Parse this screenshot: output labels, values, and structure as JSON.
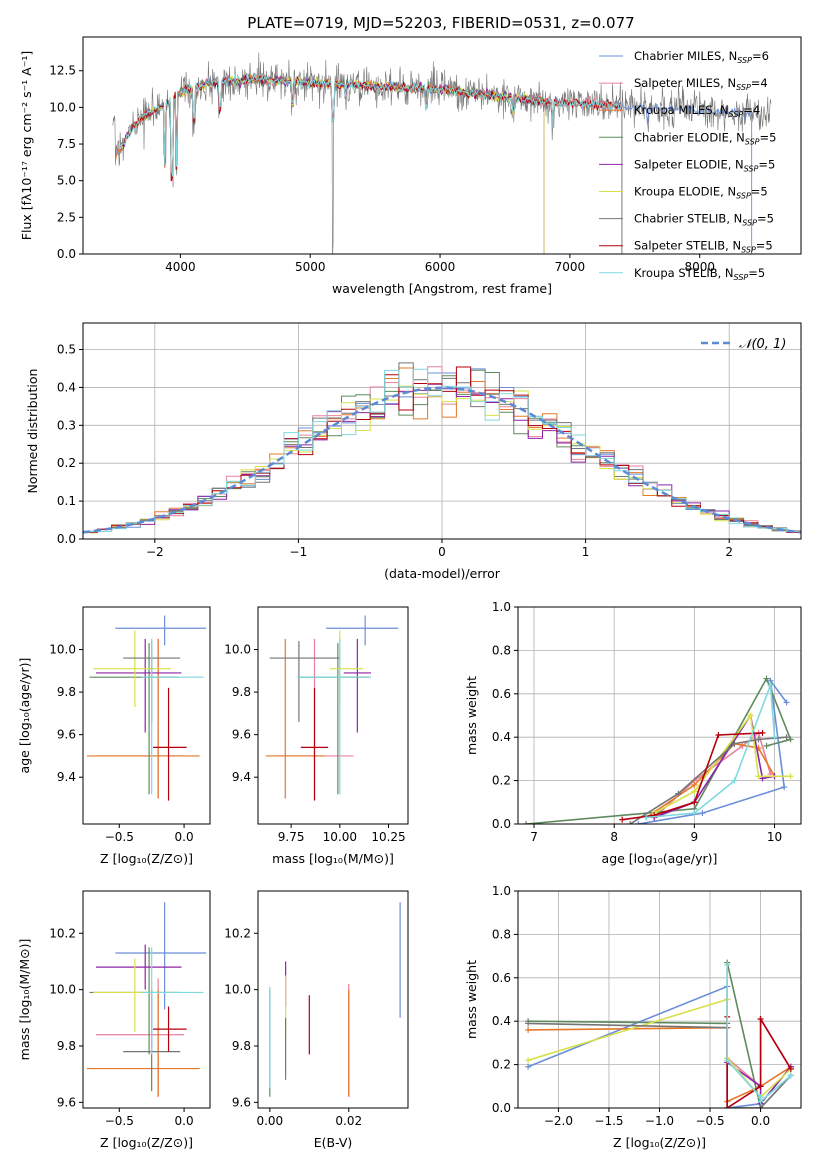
{
  "page_title": "PLATE=0719, MJD=52203, FIBERID=0531, z=0.077",
  "series_colors": [
    "#6a8fd8",
    "#e8829c",
    "#e6782a",
    "#5e8a5e",
    "#8e24aa",
    "#d8e04a",
    "#757575",
    "#b3000c",
    "#7fd9df"
  ],
  "legend_entries": [
    {
      "model": "Chabrier MILES, N",
      "sub": "SSP",
      "eq": "=6"
    },
    {
      "model": "Salpeter MILES, N",
      "sub": "SSP",
      "eq": "=4"
    },
    {
      "model": "Kroupa MILES, N",
      "sub": "SSP",
      "eq": "=4"
    },
    {
      "model": "Chabrier ELODIE, N",
      "sub": "SSP",
      "eq": "=5"
    },
    {
      "model": "Salpeter ELODIE, N",
      "sub": "SSP",
      "eq": "=5"
    },
    {
      "model": "Kroupa ELODIE, N",
      "sub": "SSP",
      "eq": "=5"
    },
    {
      "model": "Chabrier STELIB, N",
      "sub": "SSP",
      "eq": "=5"
    },
    {
      "model": "Salpeter STELIB, N",
      "sub": "SSP",
      "eq": "=5"
    },
    {
      "model": "Kroupa STELIB, N",
      "sub": "SSP",
      "eq": "=5"
    }
  ],
  "chart_data": [
    {
      "id": "spectrum",
      "type": "line",
      "xlabel": "wavelength [Angstrom, rest frame]",
      "ylabel": "Flux [fλ10⁻¹⁷ erg cm⁻² s⁻¹ A⁻¹]",
      "xlim": [
        3250,
        8780
      ],
      "ylim": [
        0,
        14.8
      ],
      "xticks": [
        4000,
        5000,
        6000,
        7000,
        8000
      ],
      "yticks": [
        0.0,
        2.5,
        5.0,
        7.5,
        10.0,
        12.5
      ],
      "grid": false,
      "legend": "top-right",
      "continuum": [
        [
          3500,
          6.5
        ],
        [
          3600,
          8.2
        ],
        [
          3700,
          9.3
        ],
        [
          3800,
          9.8
        ],
        [
          3900,
          10.2
        ],
        [
          4000,
          11.0
        ],
        [
          4200,
          11.6
        ],
        [
          4400,
          11.8
        ],
        [
          4600,
          11.9
        ],
        [
          4800,
          11.8
        ],
        [
          5000,
          11.7
        ],
        [
          5200,
          11.6
        ],
        [
          5400,
          11.5
        ],
        [
          5600,
          11.4
        ],
        [
          5800,
          11.3
        ],
        [
          6000,
          11.2
        ],
        [
          6200,
          11.0
        ],
        [
          6400,
          10.8
        ],
        [
          6600,
          10.6
        ],
        [
          6800,
          10.4
        ],
        [
          7000,
          10.3
        ],
        [
          7200,
          10.2
        ],
        [
          7400,
          10.1
        ],
        [
          7600,
          10.0
        ],
        [
          7800,
          9.9
        ],
        [
          8000,
          9.8
        ],
        [
          8200,
          9.7
        ],
        [
          8400,
          9.6
        ]
      ],
      "model_ranges": [
        [
          3500,
          8400
        ],
        [
          3500,
          7400
        ],
        [
          3500,
          7400
        ],
        [
          3540,
          6800
        ],
        [
          3540,
          6800
        ],
        [
          3540,
          6800
        ],
        [
          3540,
          7400
        ],
        [
          3540,
          7400
        ],
        [
          3540,
          7400
        ]
      ]
    },
    {
      "id": "residuals",
      "type": "bar",
      "xlabel": "(data-model)/error",
      "ylabel": "Normed distribution",
      "xlim": [
        -2.5,
        2.5
      ],
      "ylim": [
        0,
        0.57
      ],
      "xticks": [
        -2,
        -1,
        0,
        1,
        2
      ],
      "yticks": [
        0.0,
        0.1,
        0.2,
        0.3,
        0.4,
        0.5
      ],
      "grid": true,
      "legend": "top-right",
      "legend_label": "𝒩(0, 1)",
      "bin_width": 0.1,
      "bin_start": -2.5
    },
    {
      "id": "age_vs_Z",
      "type": "scatter",
      "xlabel": "Z [log₁₀(Z/Z⊙)]",
      "ylabel": "age  [log₁₀(age/yr)]",
      "xlim": [
        -0.78,
        0.2
      ],
      "ylim": [
        9.18,
        10.2
      ],
      "xticks": [
        -0.5,
        0.0
      ],
      "xticklabels": [
        "−0.5",
        "0.0"
      ],
      "yticks": [
        9.4,
        9.6,
        9.8,
        10.0
      ],
      "points": [
        {
          "x": -0.15,
          "xerr": [
            0.38,
            0.32
          ],
          "y": 10.1,
          "yerr": [
            0.08,
            0.06
          ]
        },
        {
          "x": -0.2,
          "xerr": [
            0.48,
            0.2
          ],
          "y": 9.5,
          "yerr": [
            0.2,
            0.55
          ]
        },
        {
          "x": -0.2,
          "xerr": [
            0.55,
            0.32
          ],
          "y": 9.5,
          "yerr": [
            0.2,
            0.55
          ]
        },
        {
          "x": -0.27,
          "xerr": [
            0.46,
            0.23
          ],
          "y": 9.87,
          "yerr": [
            0.55,
            0.16
          ]
        },
        {
          "x": -0.3,
          "xerr": [
            0.38,
            0.28
          ],
          "y": 9.89,
          "yerr": [
            0.28,
            0.16
          ]
        },
        {
          "x": -0.38,
          "xerr": [
            0.32,
            0.28
          ],
          "y": 9.91,
          "yerr": [
            0.18,
            0.18
          ]
        },
        {
          "x": -0.25,
          "xerr": [
            0.22,
            0.22
          ],
          "y": 9.96,
          "yerr": [
            0.3,
            0.08
          ]
        },
        {
          "x": -0.12,
          "xerr": [
            0.12,
            0.14
          ],
          "y": 9.54,
          "yerr": [
            0.25,
            0.28
          ]
        },
        {
          "x": -0.25,
          "xerr": [
            0.08,
            0.4
          ],
          "y": 9.87,
          "yerr": [
            0.55,
            0.18
          ]
        }
      ]
    },
    {
      "id": "age_vs_mass",
      "type": "scatter",
      "xlabel": "mass [log₁₀(M/M⊙)]",
      "ylabel": "",
      "xlim": [
        9.58,
        10.35
      ],
      "ylim": [
        9.18,
        10.2
      ],
      "xticks": [
        9.75,
        10.0,
        10.25
      ],
      "xticklabels": [
        "9.75",
        "10.00",
        "10.25"
      ],
      "yticks": [
        9.4,
        9.6,
        9.8,
        10.0
      ],
      "points": [
        {
          "x": 10.13,
          "xerr": [
            0.2,
            0.17
          ],
          "y": 10.1,
          "yerr": [
            0.08,
            0.06
          ]
        },
        {
          "x": 9.87,
          "xerr": [
            0.2,
            0.2
          ],
          "y": 9.5,
          "yerr": [
            0.2,
            0.55
          ]
        },
        {
          "x": 9.72,
          "xerr": [
            0.1,
            0.2
          ],
          "y": 9.5,
          "yerr": [
            0.2,
            0.55
          ]
        },
        {
          "x": 9.99,
          "xerr": [
            0.2,
            0.16
          ],
          "y": 9.87,
          "yerr": [
            0.55,
            0.16
          ]
        },
        {
          "x": 10.09,
          "xerr": [
            0.07,
            0.07
          ],
          "y": 9.89,
          "yerr": [
            0.28,
            0.16
          ]
        },
        {
          "x": 10.0,
          "xerr": [
            0.05,
            0.12
          ],
          "y": 9.91,
          "yerr": [
            0.18,
            0.18
          ]
        },
        {
          "x": 9.79,
          "xerr": [
            0.15,
            0.21
          ],
          "y": 9.96,
          "yerr": [
            0.3,
            0.08
          ]
        },
        {
          "x": 9.87,
          "xerr": [
            0.07,
            0.07
          ],
          "y": 9.54,
          "yerr": [
            0.25,
            0.28
          ]
        },
        {
          "x": 10.0,
          "xerr": [
            0.22,
            0.16
          ],
          "y": 9.87,
          "yerr": [
            0.55,
            0.18
          ]
        }
      ]
    },
    {
      "id": "weight_vs_age",
      "type": "line",
      "xlabel": "age  [log₁₀(age/yr)]",
      "ylabel": "mass weight",
      "xlim": [
        6.8,
        10.33
      ],
      "ylim": [
        0,
        1.0
      ],
      "xticks": [
        7,
        8,
        9,
        10
      ],
      "yticks": [
        0.0,
        0.2,
        0.4,
        0.6,
        0.8,
        1.0
      ],
      "grid": true,
      "series": [
        {
          "x": [
            8.3,
            9.1,
            10.12,
            9.95,
            10.15
          ],
          "y": [
            0.0,
            0.05,
            0.17,
            0.66,
            0.56
          ]
        },
        {
          "x": [
            8.5,
            9.0,
            9.6,
            9.8,
            9.95
          ],
          "y": [
            0.03,
            0.2,
            0.36,
            0.42,
            0.23
          ]
        },
        {
          "x": [
            8.4,
            9.0,
            9.5,
            9.8,
            10.0
          ],
          "y": [
            0.03,
            0.18,
            0.37,
            0.35,
            0.22
          ]
        },
        {
          "x": [
            6.9,
            9.0,
            9.9,
            10.2,
            9.9
          ],
          "y": [
            0.0,
            0.07,
            0.67,
            0.39,
            0.36
          ]
        },
        {
          "x": [
            8.5,
            9.0,
            9.7,
            9.85,
            10.0
          ],
          "y": [
            0.03,
            0.1,
            0.5,
            0.21,
            0.22
          ]
        },
        {
          "x": [
            8.5,
            9.0,
            9.7,
            9.8,
            10.2
          ],
          "y": [
            0.05,
            0.15,
            0.5,
            0.22,
            0.22
          ]
        },
        {
          "x": [
            8.2,
            8.8,
            9.5,
            9.8,
            10.15
          ],
          "y": [
            0.0,
            0.14,
            0.37,
            0.39,
            0.4
          ]
        },
        {
          "x": [
            8.1,
            8.5,
            9.0,
            9.3,
            9.85
          ],
          "y": [
            0.02,
            0.04,
            0.1,
            0.41,
            0.42
          ]
        },
        {
          "x": [
            8.4,
            9.0,
            9.5,
            9.95,
            10.0
          ],
          "y": [
            0.03,
            0.05,
            0.2,
            0.64,
            0.4
          ]
        }
      ]
    },
    {
      "id": "mass_vs_Z",
      "type": "scatter",
      "xlabel": "Z [log₁₀(Z/Z⊙)]",
      "ylabel": "mass [log₁₀(M/M⊙)]",
      "xlim": [
        -0.78,
        0.2
      ],
      "ylim": [
        9.58,
        10.35
      ],
      "xticks": [
        -0.5,
        0.0
      ],
      "xticklabels": [
        "−0.5",
        "0.0"
      ],
      "yticks": [
        9.6,
        9.8,
        10.0,
        10.2
      ],
      "points": [
        {
          "x": -0.15,
          "xerr": [
            0.38,
            0.32
          ],
          "y": 10.13,
          "yerr": [
            0.2,
            0.18
          ]
        },
        {
          "x": -0.2,
          "xerr": [
            0.48,
            0.2
          ],
          "y": 9.84,
          "yerr": [
            0.22,
            0.2
          ]
        },
        {
          "x": -0.2,
          "xerr": [
            0.55,
            0.32
          ],
          "y": 9.72,
          "yerr": [
            0.1,
            0.28
          ]
        },
        {
          "x": -0.27,
          "xerr": [
            0.46,
            0.23
          ],
          "y": 9.99,
          "yerr": [
            0.22,
            0.16
          ]
        },
        {
          "x": -0.3,
          "xerr": [
            0.38,
            0.28
          ],
          "y": 10.08,
          "yerr": [
            0.08,
            0.08
          ]
        },
        {
          "x": -0.38,
          "xerr": [
            0.32,
            0.28
          ],
          "y": 9.99,
          "yerr": [
            0.14,
            0.12
          ]
        },
        {
          "x": -0.25,
          "xerr": [
            0.22,
            0.22
          ],
          "y": 9.78,
          "yerr": [
            0.14,
            0.22
          ]
        },
        {
          "x": -0.12,
          "xerr": [
            0.12,
            0.14
          ],
          "y": 9.86,
          "yerr": [
            0.08,
            0.08
          ]
        },
        {
          "x": -0.25,
          "xerr": [
            0.08,
            0.4
          ],
          "y": 9.99,
          "yerr": [
            0.22,
            0.16
          ]
        }
      ]
    },
    {
      "id": "mass_vs_ebv",
      "type": "scatter",
      "xlabel": "E(B-V)",
      "ylabel": "",
      "xlim": [
        -0.003,
        0.035
      ],
      "ylim": [
        9.58,
        10.35
      ],
      "xticks": [
        0.0,
        0.02
      ],
      "xticklabels": [
        "0.00",
        "0.02"
      ],
      "yticks": [
        9.6,
        9.8,
        10.0,
        10.2
      ],
      "points": [
        {
          "x": 0.033,
          "xerr": [
            0,
            0
          ],
          "y": 10.1,
          "yerr": [
            0.2,
            0.21
          ]
        },
        {
          "x": 0.02,
          "xerr": [
            0,
            0
          ],
          "y": 9.82,
          "yerr": [
            0.2,
            0.2
          ]
        },
        {
          "x": 0.02,
          "xerr": [
            0,
            0
          ],
          "y": 9.72,
          "yerr": [
            0.1,
            0.28
          ]
        },
        {
          "x": 0.0,
          "xerr": [
            0,
            0
          ],
          "y": 9.82,
          "yerr": [
            0.2,
            0.18
          ]
        },
        {
          "x": 0.004,
          "xerr": [
            0,
            0
          ],
          "y": 10.0,
          "yerr": [
            0.06,
            0.1
          ]
        },
        {
          "x": 0.004,
          "xerr": [
            0,
            0
          ],
          "y": 9.95,
          "yerr": [
            0.12,
            0.1
          ]
        },
        {
          "x": 0.004,
          "xerr": [
            0,
            0
          ],
          "y": 9.78,
          "yerr": [
            0.1,
            0.12
          ]
        },
        {
          "x": 0.01,
          "xerr": [
            0,
            0
          ],
          "y": 9.88,
          "yerr": [
            0.11,
            0.1
          ]
        },
        {
          "x": 0.0,
          "xerr": [
            0,
            0
          ],
          "y": 9.85,
          "yerr": [
            0.2,
            0.16
          ]
        }
      ]
    },
    {
      "id": "weight_vs_Z",
      "type": "line",
      "xlabel": "Z [log₁₀(Z/Z⊙)]",
      "ylabel": "mass weight",
      "xlim": [
        -2.4,
        0.4
      ],
      "ylim": [
        0,
        1.0
      ],
      "xticks": [
        -2.0,
        -1.5,
        -1.0,
        -0.5,
        0.0
      ],
      "xticklabels": [
        "−2.0",
        "−1.5",
        "−1.0",
        "−0.5",
        "0.0"
      ],
      "yticks": [
        0.0,
        0.2,
        0.4,
        0.6,
        0.8,
        1.0
      ],
      "grid": true,
      "series": [
        {
          "x": [
            -2.3,
            -0.33,
            -0.33,
            0.0,
            0.3
          ],
          "y": [
            0.19,
            0.56,
            0.0,
            0.02,
            0.19
          ]
        },
        {
          "x": [
            -0.33,
            -0.33,
            0.0,
            0.0,
            0.3
          ],
          "y": [
            0.03,
            0.23,
            0.1,
            0.41,
            0.18
          ]
        },
        {
          "x": [
            -2.3,
            -0.33,
            -0.33,
            0.0,
            0.3
          ],
          "y": [
            0.36,
            0.37,
            0.03,
            0.1,
            0.19
          ]
        },
        {
          "x": [
            -2.3,
            -0.33,
            -0.33,
            0.0,
            0.3
          ],
          "y": [
            0.4,
            0.39,
            0.67,
            0.0,
            0.15
          ]
        },
        {
          "x": [
            -0.33,
            -0.33,
            0.0,
            0.0,
            0.3
          ],
          "y": [
            0.5,
            0.21,
            0.1,
            0.02,
            0.19
          ]
        },
        {
          "x": [
            -2.3,
            -0.33,
            -0.33,
            0.0,
            0.3
          ],
          "y": [
            0.22,
            0.5,
            0.23,
            0.05,
            0.18
          ]
        },
        {
          "x": [
            -2.3,
            -0.33,
            -0.33,
            0.0,
            0.3
          ],
          "y": [
            0.39,
            0.37,
            0.0,
            0.0,
            0.15
          ]
        },
        {
          "x": [
            -0.33,
            -0.33,
            0.0,
            0.0,
            0.3
          ],
          "y": [
            0.42,
            0.0,
            0.1,
            0.41,
            0.18
          ]
        },
        {
          "x": [
            -0.33,
            -0.33,
            0.0,
            0.0,
            0.3
          ],
          "y": [
            0.66,
            0.22,
            0.05,
            0.03,
            0.15
          ]
        }
      ]
    }
  ]
}
